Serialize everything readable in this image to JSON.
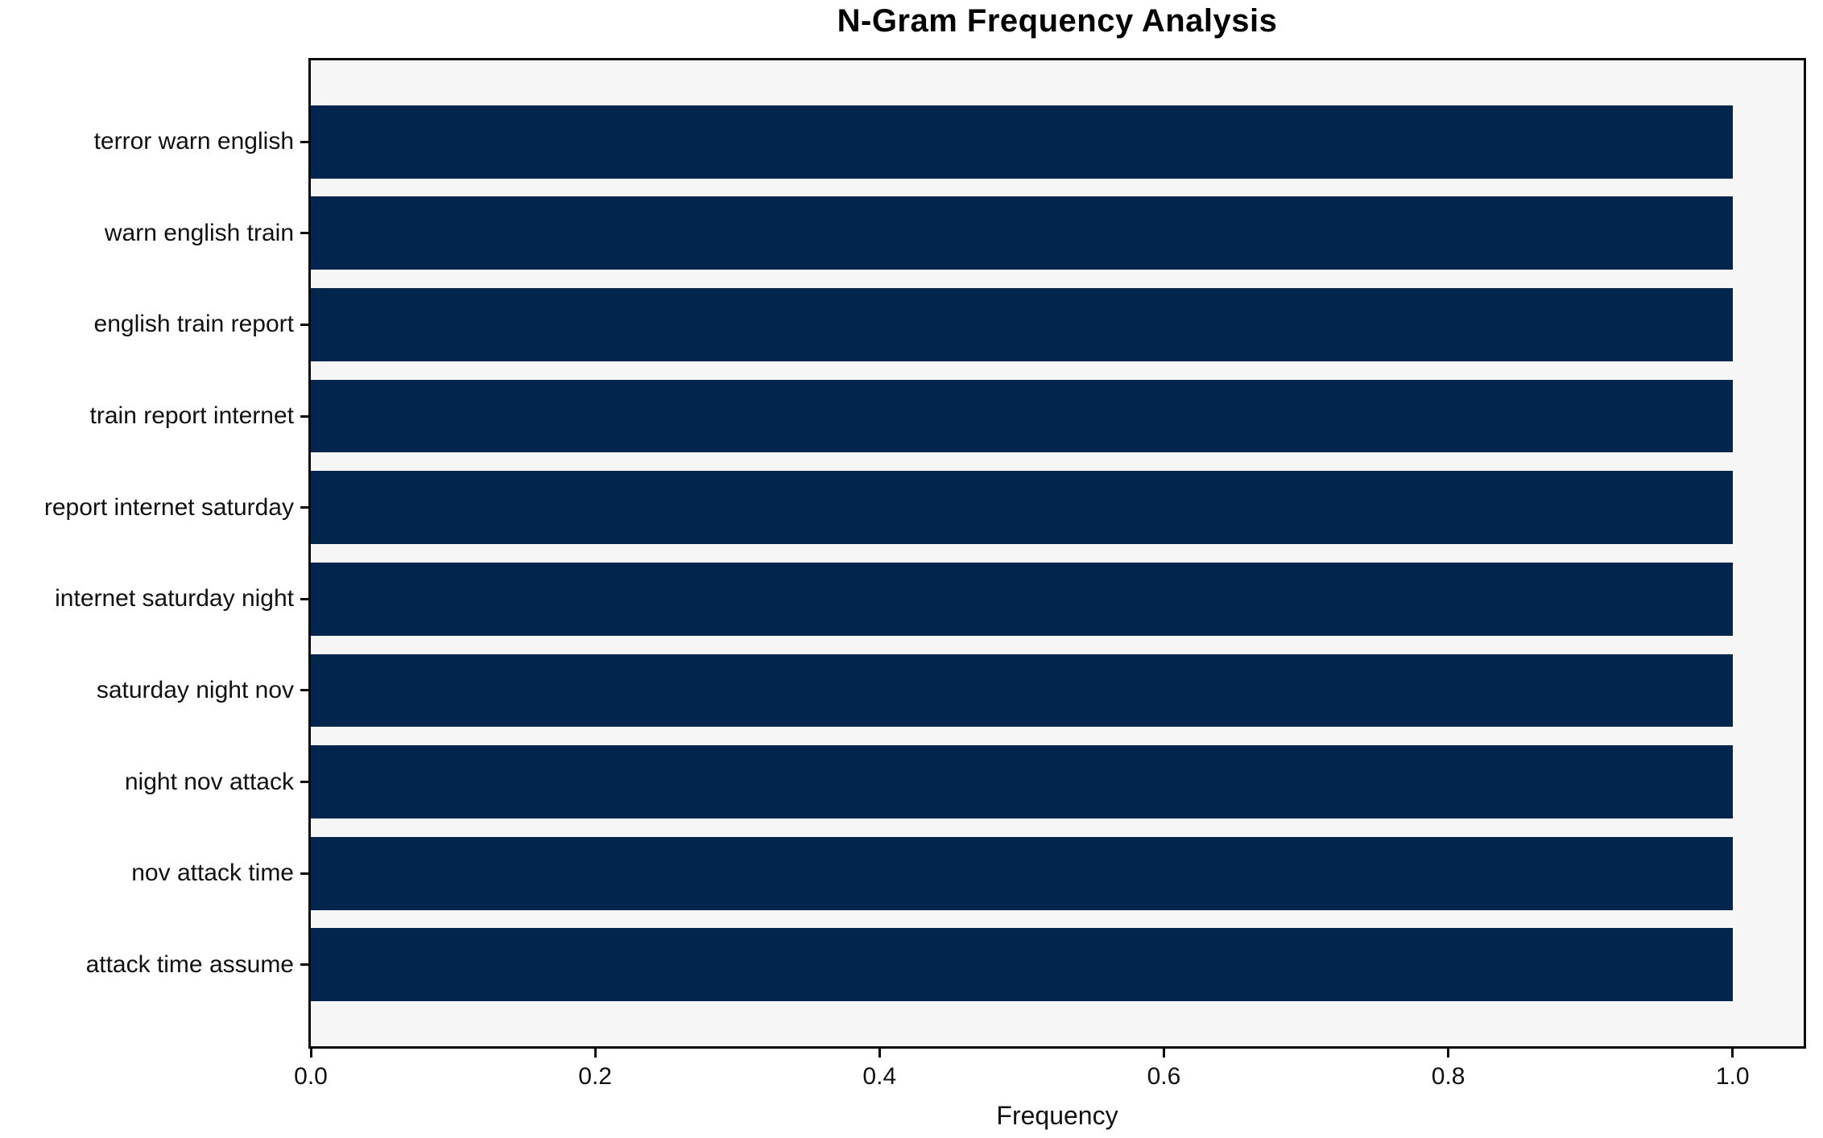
{
  "chart_data": {
    "type": "bar",
    "orientation": "horizontal",
    "title": "N-Gram Frequency Analysis",
    "xlabel": "Frequency",
    "ylabel": "",
    "categories": [
      "terror warn english",
      "warn english train",
      "english train report",
      "train report internet",
      "report internet saturday",
      "internet saturday night",
      "saturday night nov",
      "night nov attack",
      "nov attack time",
      "attack time assume"
    ],
    "values": [
      1.0,
      1.0,
      1.0,
      1.0,
      1.0,
      1.0,
      1.0,
      1.0,
      1.0,
      1.0
    ],
    "xlim": [
      0,
      1.05
    ],
    "xticks": [
      0.0,
      0.2,
      0.4,
      0.6,
      0.8,
      1.0
    ],
    "xtick_labels": [
      "0.0",
      "0.2",
      "0.4",
      "0.6",
      "0.8",
      "1.0"
    ],
    "grid": false,
    "legend": null,
    "bar_height_fraction": 0.8,
    "colors": {
      "bar": "#02254e",
      "plot_background": "#f6f6f7",
      "figure_background": "#ffffff",
      "spine": "#0a0a0a",
      "text": "#111111"
    }
  }
}
